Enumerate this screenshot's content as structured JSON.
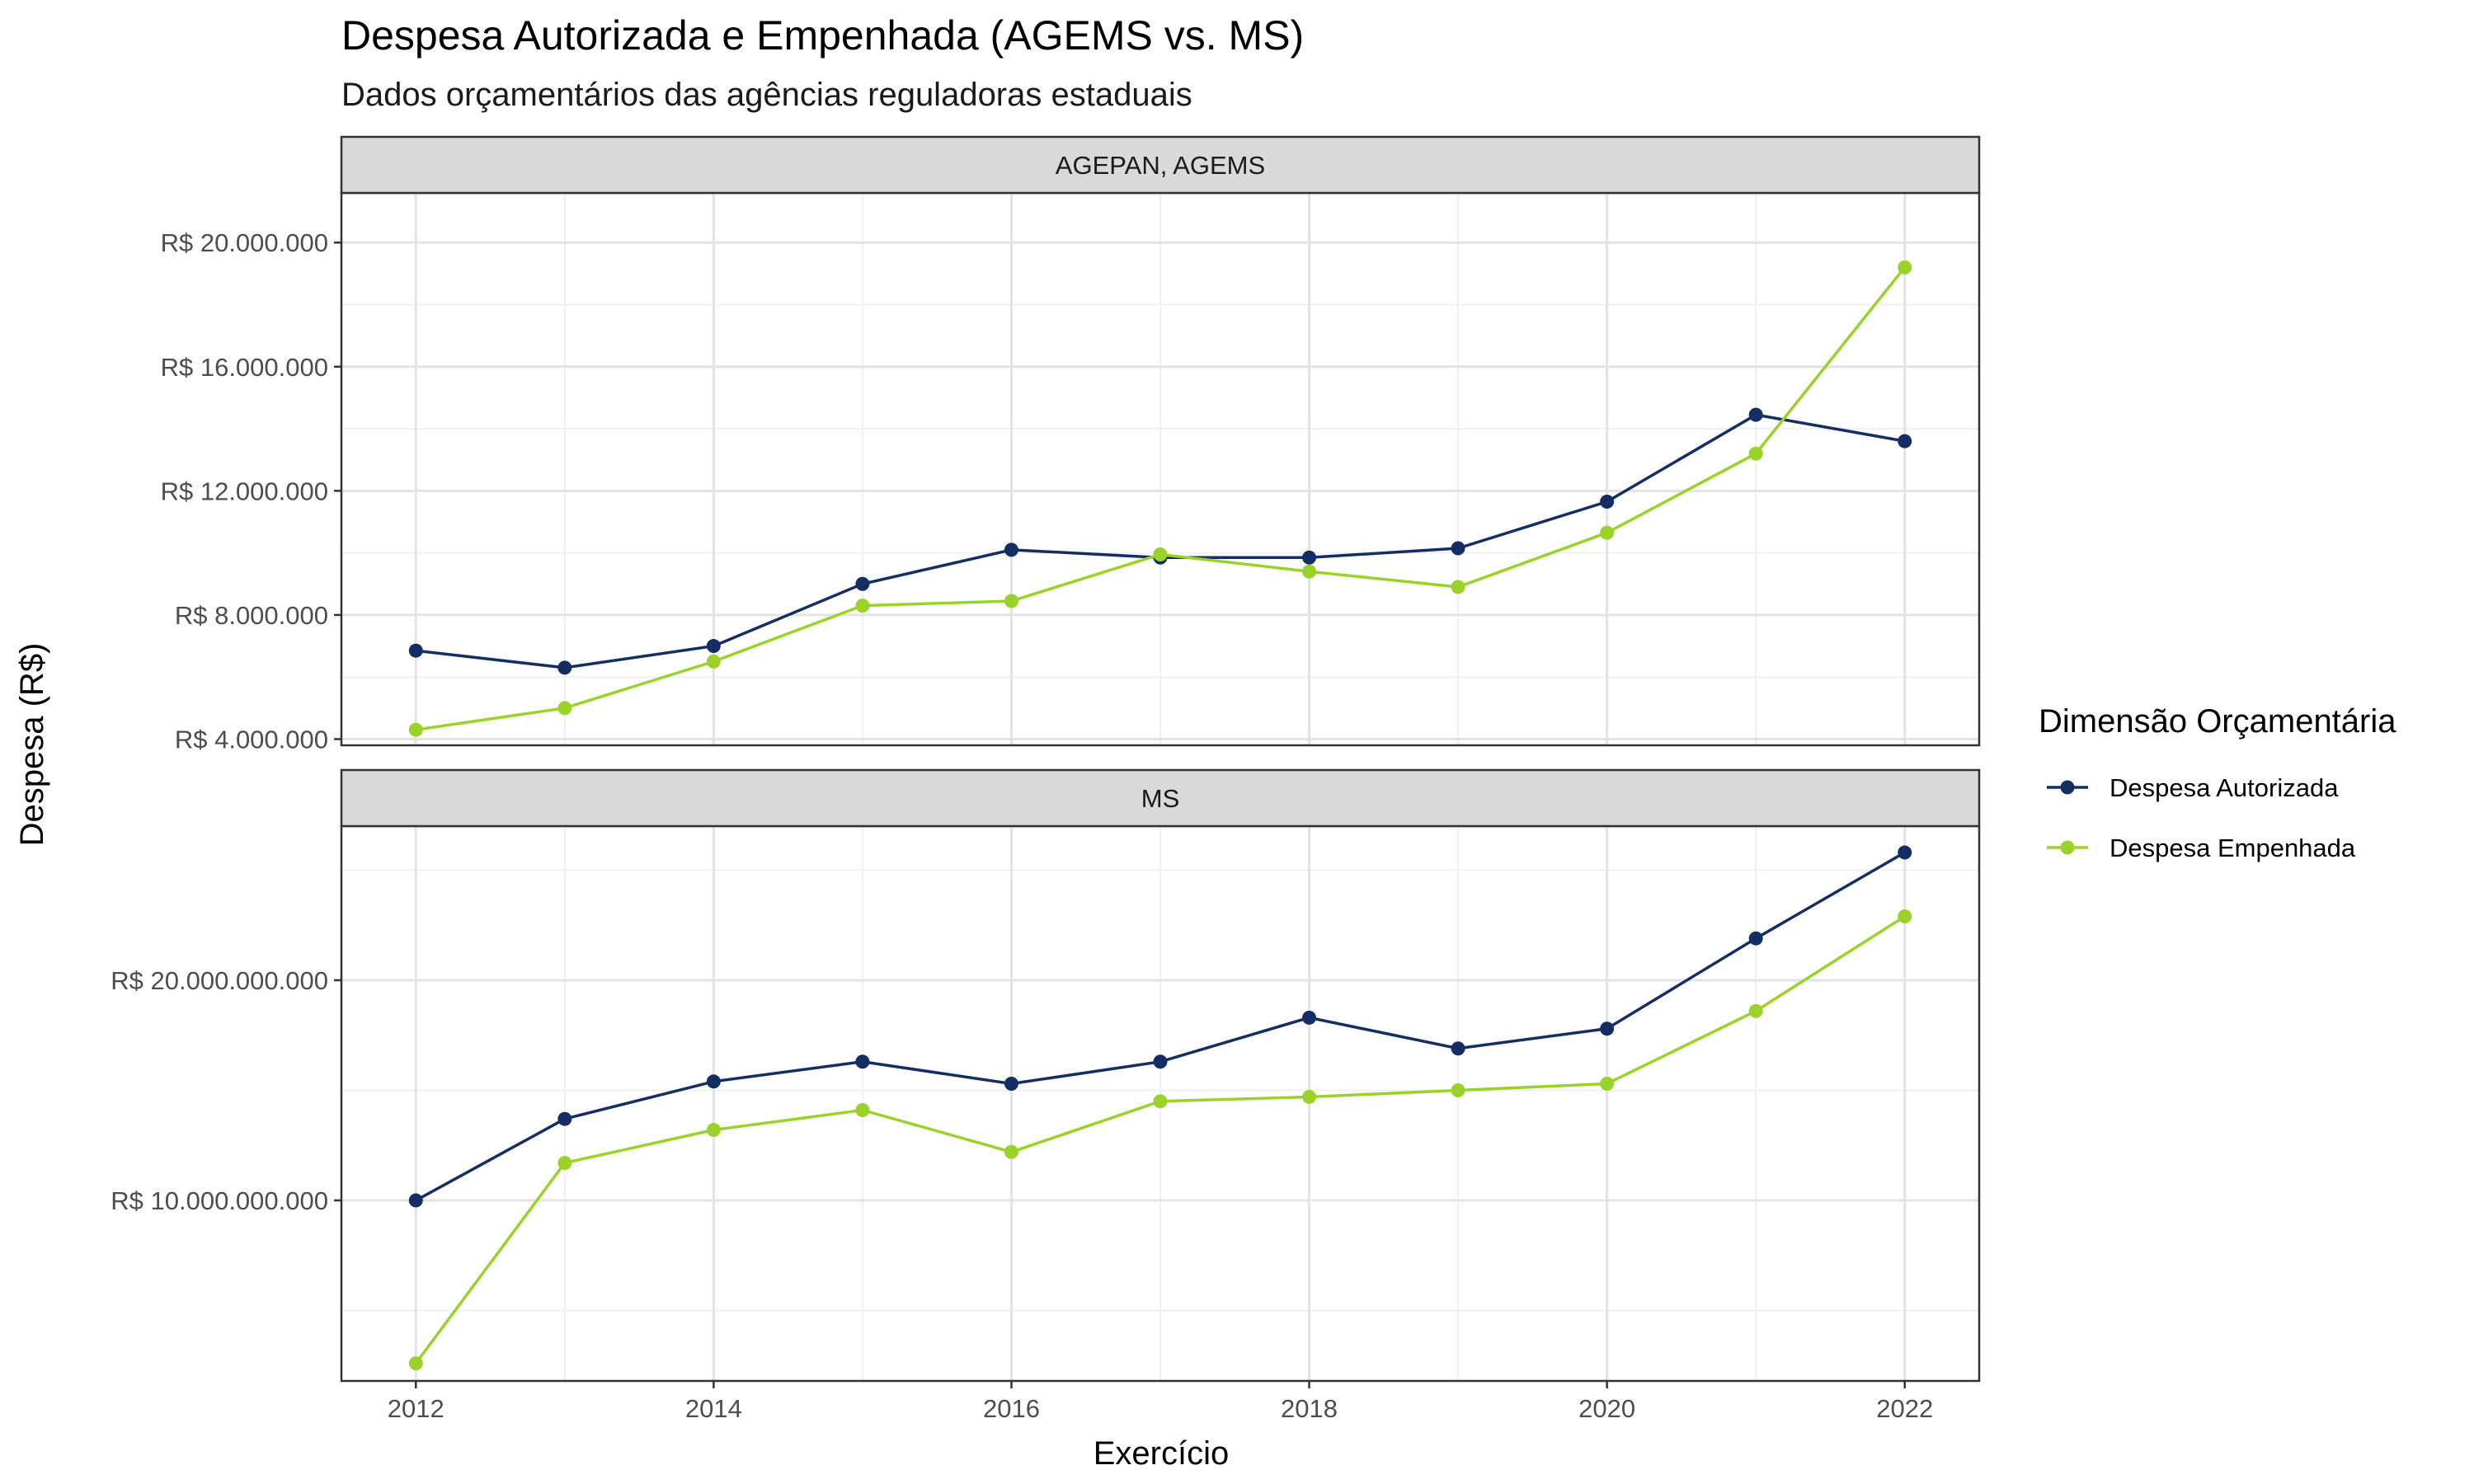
{
  "chart_data": {
    "type": "line",
    "title": "Despesa Autorizada e Empenhada (AGEMS vs. MS)",
    "subtitle": "Dados orçamentários das agências reguladoras estaduais",
    "xlabel": "Exercício",
    "ylabel": "Despesa (R$)",
    "x": [
      2012,
      2013,
      2014,
      2015,
      2016,
      2017,
      2018,
      2019,
      2020,
      2021,
      2022
    ],
    "x_ticks": [
      2012,
      2014,
      2016,
      2018,
      2020,
      2022
    ],
    "x_tick_labels": [
      "2012",
      "2014",
      "2016",
      "2018",
      "2020",
      "2022"
    ],
    "xlim": [
      2011.5,
      2022.5
    ],
    "grid": true,
    "legend": {
      "title": "Dimensão Orçamentária",
      "position": "right",
      "entries": [
        "Despesa Autorizada",
        "Despesa Empenhada"
      ]
    },
    "colors": {
      "Despesa Autorizada": "#142e63",
      "Despesa Empenhada": "#9bd22a"
    },
    "panels": [
      {
        "strip": "AGEPAN, AGEMS",
        "ylim": [
          3800000,
          21600000
        ],
        "y_ticks": [
          4000000,
          8000000,
          12000000,
          16000000,
          20000000
        ],
        "y_tick_labels": [
          "R$ 4.000.000",
          "R$ 8.000.000",
          "R$ 12.000.000",
          "R$ 16.000.000",
          "R$ 20.000.000"
        ],
        "series": [
          {
            "name": "Despesa Autorizada",
            "values": [
              6850000,
              6300000,
              7000000,
              9000000,
              10100000,
              9850000,
              9850000,
              10150000,
              11650000,
              14450000,
              13600000
            ]
          },
          {
            "name": "Despesa Empenhada",
            "values": [
              4300000,
              5000000,
              6500000,
              8300000,
              8450000,
              9950000,
              9400000,
              8900000,
              10650000,
              13200000,
              19200000
            ]
          }
        ]
      },
      {
        "strip": "MS",
        "ylim": [
          1800000000,
          27000000000
        ],
        "y_ticks": [
          10000000000,
          20000000000
        ],
        "y_tick_labels": [
          "R$ 10.000.000.000",
          "R$ 20.000.000.000"
        ],
        "series": [
          {
            "name": "Despesa Autorizada",
            "values": [
              10000000000,
              13700000000,
              15400000000,
              16300000000,
              15300000000,
              16300000000,
              18300000000,
              16900000000,
              17800000000,
              21900000000,
              25800000000
            ]
          },
          {
            "name": "Despesa Empenhada",
            "values": [
              2600000000,
              11700000000,
              13200000000,
              14100000000,
              12200000000,
              14500000000,
              14700000000,
              15000000000,
              15300000000,
              18600000000,
              22900000000
            ]
          }
        ]
      }
    ]
  }
}
